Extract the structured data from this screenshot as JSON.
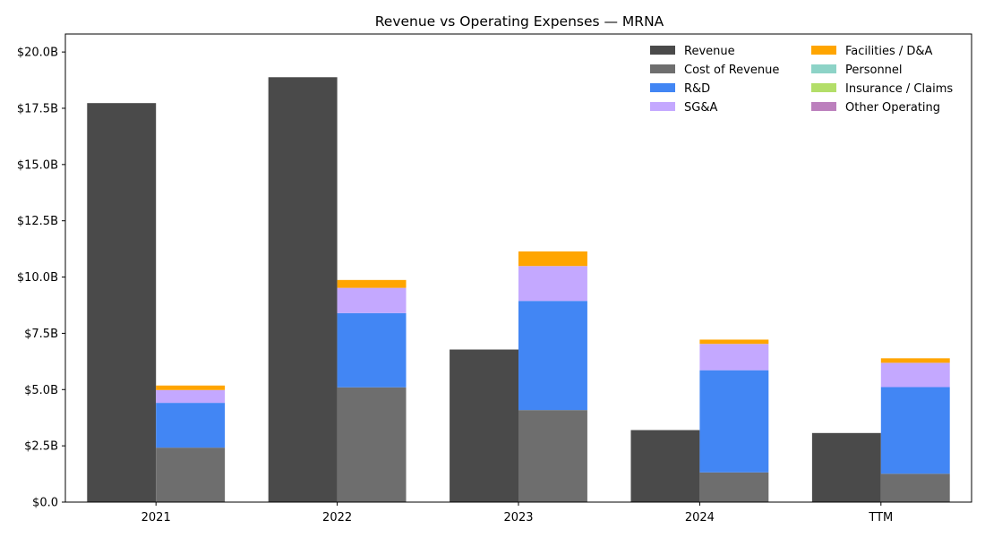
{
  "chart_data": {
    "type": "bar",
    "title": "Revenue vs Operating Expenses — MRNA",
    "xlabel": "",
    "ylabel": "",
    "categories": [
      "2021",
      "2022",
      "2023",
      "2024",
      "TTM"
    ],
    "ylim": [
      0,
      20.8
    ],
    "yticks": [
      0,
      2.5,
      5.0,
      7.5,
      10.0,
      12.5,
      15.0,
      17.5,
      20.0
    ],
    "ytick_labels": [
      "$0.0",
      "$2.5B",
      "$5.0B",
      "$7.5B",
      "$10.0B",
      "$12.5B",
      "$15.0B",
      "$17.5B",
      "$20.0B"
    ],
    "unit": "billions USD",
    "grid": false,
    "legend_position": "top-right",
    "legend_columns": 2,
    "revenue": {
      "name": "Revenue",
      "color": "#4a4a4a",
      "values": [
        17.73,
        18.88,
        6.78,
        3.2,
        3.07
      ]
    },
    "expense_series": [
      {
        "name": "Cost of Revenue",
        "color": "#6e6e6e",
        "values": [
          2.42,
          5.1,
          4.09,
          1.32,
          1.26
        ]
      },
      {
        "name": "R&D",
        "color": "#4286f4",
        "values": [
          1.99,
          3.3,
          4.85,
          4.54,
          3.85
        ]
      },
      {
        "name": "SG&A",
        "color": "#c4a8ff",
        "values": [
          0.57,
          1.12,
          1.55,
          1.17,
          1.08
        ]
      },
      {
        "name": "Facilities / D&A",
        "color": "#ffa500",
        "values": [
          0.2,
          0.35,
          0.65,
          0.19,
          0.2
        ]
      },
      {
        "name": "Personnel",
        "color": "#8dd3c7",
        "values": [
          0,
          0,
          0,
          0,
          0
        ]
      },
      {
        "name": "Insurance / Claims",
        "color": "#b3de69",
        "values": [
          0,
          0,
          0,
          0,
          0
        ]
      },
      {
        "name": "Other Operating",
        "color": "#bc80bd",
        "values": [
          0,
          0,
          0,
          0,
          0
        ]
      }
    ]
  }
}
